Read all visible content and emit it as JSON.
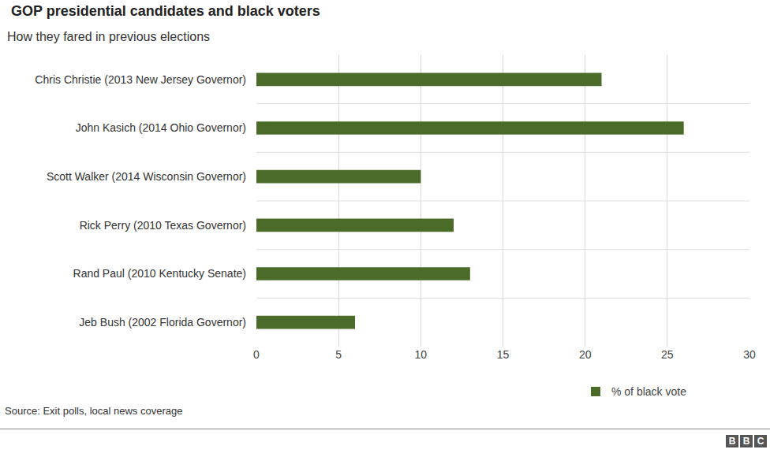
{
  "chart_data": {
    "type": "bar",
    "orientation": "horizontal",
    "title": "GOP presidential candidates and black voters",
    "subtitle": "How they fared in previous elections",
    "categories": [
      "Chris Christie (2013 New Jersey Governor)",
      "John Kasich (2014 Ohio Governor)",
      "Scott Walker (2014 Wisconsin Governor)",
      "Rick Perry (2010 Texas Governor)",
      "Rand Paul (2010 Kentucky Senate)",
      "Jeb Bush (2002 Florida Governor)"
    ],
    "series": [
      {
        "name": "% of black vote",
        "color": "#4b6b28",
        "values": [
          21,
          26,
          10,
          12,
          13,
          6
        ]
      }
    ],
    "xlim": [
      0,
      30
    ],
    "xticks": [
      0,
      5,
      10,
      15,
      20,
      25,
      30
    ],
    "grid": true,
    "legend": "bottom right",
    "source": "Source: Exit polls, local news coverage",
    "logo": "BBC"
  }
}
